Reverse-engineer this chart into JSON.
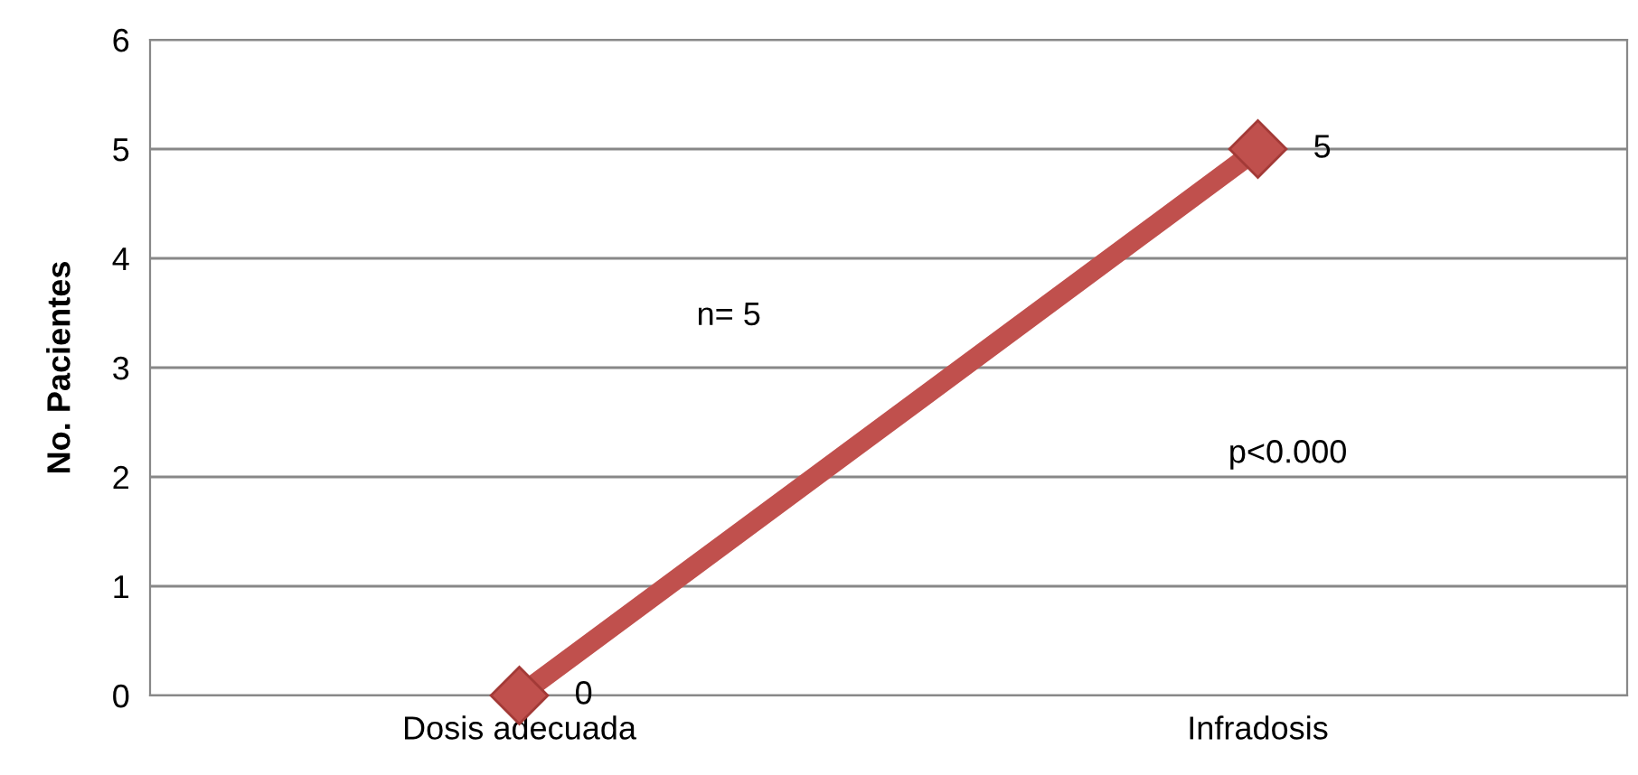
{
  "chart_data": {
    "type": "line",
    "ylabel": "No. Pacientes",
    "categories": [
      "Dosis adecuada",
      "Infradosis"
    ],
    "series": [
      {
        "color": "#c0504d",
        "values": [
          0,
          5
        ]
      }
    ],
    "ylim": [
      0,
      6
    ],
    "yticks": [
      0,
      1,
      2,
      3,
      4,
      5,
      6
    ],
    "grid": "y",
    "marker": "diamond",
    "line_style": "solid",
    "data_labels": true,
    "annotations": [
      "n= 5",
      "p<0.000"
    ]
  }
}
